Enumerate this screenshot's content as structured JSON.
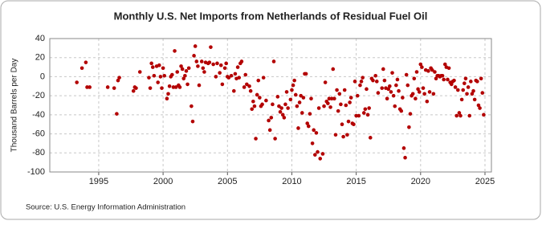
{
  "chart_data": {
    "type": "scatter",
    "title": "Monthly U.S. Net Imports from Netherlands of Residual Fuel Oil",
    "y_label": "Thousand Barrels per Day",
    "source": "Source: U.S. Energy Information Administration",
    "color": "#b30000",
    "grid": true,
    "xlim": [
      1991.2,
      2025.5
    ],
    "ylim": [
      -100,
      40
    ],
    "xticks": [
      1995,
      2000,
      2005,
      2010,
      2015,
      2020,
      2025
    ],
    "yticks": [
      -100,
      -80,
      -60,
      -40,
      -20,
      0,
      20,
      40
    ],
    "x": [
      1993.3,
      1993.7,
      1994.0,
      1994.1,
      1994.3,
      1995.7,
      1996.2,
      1996.4,
      1996.5,
      1996.6,
      1997.7,
      1997.8,
      1997.9,
      1998.2,
      1998.9,
      1999.0,
      1999.1,
      1999.2,
      1999.3,
      1999.5,
      1999.6,
      1999.7,
      1999.8,
      1999.9,
      2000.0,
      2000.1,
      2000.3,
      2000.4,
      2000.5,
      2000.6,
      2000.7,
      2000.8,
      2000.9,
      2001.0,
      2001.1,
      2001.2,
      2001.3,
      2001.4,
      2001.5,
      2001.6,
      2001.7,
      2001.8,
      2001.9,
      2002.0,
      2002.2,
      2002.3,
      2002.4,
      2002.5,
      2002.6,
      2002.7,
      2002.8,
      2003.0,
      2003.1,
      2003.2,
      2003.3,
      2003.5,
      2003.6,
      2003.7,
      2003.9,
      2004.1,
      2004.2,
      2004.4,
      2004.5,
      2004.6,
      2004.8,
      2004.9,
      2005.0,
      2005.1,
      2005.3,
      2005.5,
      2005.6,
      2005.7,
      2005.8,
      2005.9,
      2006.0,
      2006.1,
      2006.3,
      2006.4,
      2006.5,
      2006.7,
      2006.8,
      2006.9,
      2007.0,
      2007.1,
      2007.2,
      2007.3,
      2007.4,
      2007.5,
      2007.6,
      2007.7,
      2007.8,
      2008.0,
      2008.2,
      2008.3,
      2008.4,
      2008.5,
      2008.6,
      2008.7,
      2008.9,
      2009.0,
      2009.1,
      2009.2,
      2009.3,
      2009.4,
      2009.5,
      2009.6,
      2009.7,
      2009.9,
      2010.0,
      2010.1,
      2010.2,
      2010.3,
      2010.4,
      2010.5,
      2010.6,
      2010.7,
      2010.8,
      2010.9,
      2011.0,
      2011.1,
      2011.2,
      2011.3,
      2011.4,
      2011.5,
      2011.6,
      2011.7,
      2011.8,
      2011.9,
      2012.0,
      2012.1,
      2012.2,
      2012.4,
      2012.5,
      2012.6,
      2012.7,
      2012.8,
      2012.9,
      2013.0,
      2013.1,
      2013.2,
      2013.3,
      2013.4,
      2013.5,
      2013.6,
      2013.7,
      2013.8,
      2013.9,
      2014.0,
      2014.1,
      2014.2,
      2014.3,
      2014.4,
      2014.5,
      2014.6,
      2014.7,
      2014.8,
      2014.9,
      2015.0,
      2015.1,
      2015.2,
      2015.3,
      2015.4,
      2015.5,
      2015.6,
      2015.7,
      2015.8,
      2015.9,
      2016.0,
      2016.1,
      2016.2,
      2016.3,
      2016.5,
      2016.6,
      2016.7,
      2017.0,
      2017.1,
      2017.2,
      2017.3,
      2017.4,
      2017.5,
      2017.6,
      2017.7,
      2017.8,
      2017.9,
      2018.0,
      2018.1,
      2018.2,
      2018.3,
      2018.4,
      2018.5,
      2018.6,
      2018.7,
      2018.8,
      2018.9,
      2019.0,
      2019.1,
      2019.2,
      2019.3,
      2019.4,
      2019.5,
      2019.6,
      2019.7,
      2019.8,
      2019.9,
      2020.0,
      2020.1,
      2020.2,
      2020.3,
      2020.4,
      2020.5,
      2020.6,
      2020.7,
      2020.8,
      2020.9,
      2021.0,
      2021.1,
      2021.2,
      2021.3,
      2021.4,
      2021.5,
      2021.6,
      2021.7,
      2021.8,
      2021.9,
      2022.0,
      2022.1,
      2022.2,
      2022.3,
      2022.4,
      2022.5,
      2022.6,
      2022.7,
      2022.8,
      2022.9,
      2023.0,
      2023.1,
      2023.2,
      2023.3,
      2023.4,
      2023.5,
      2023.6,
      2023.7,
      2023.8,
      2023.9,
      2024.0,
      2024.1,
      2024.2,
      2024.3,
      2024.4,
      2024.5,
      2024.6,
      2024.7,
      2024.8,
      2024.9
    ],
    "values": [
      -6,
      9,
      15,
      -11,
      -11,
      -11,
      -12,
      -39,
      -4,
      -1,
      -15,
      -11,
      -12,
      5,
      -1,
      -12,
      14,
      10,
      1,
      11,
      -6,
      12,
      0,
      -12,
      9,
      1,
      -23,
      -18,
      -10,
      0,
      2,
      -11,
      27,
      -11,
      5,
      -9,
      -11,
      11,
      8,
      -2,
      1,
      6,
      -8,
      9,
      -31,
      -47,
      22,
      32,
      16,
      11,
      -9,
      16,
      9,
      5,
      15,
      14,
      15,
      31,
      13,
      0,
      14,
      4,
      12,
      -8,
      9,
      14,
      0,
      -1,
      1,
      -15,
      3,
      -2,
      10,
      -1,
      14,
      16,
      -11,
      2,
      -8,
      -10,
      -15,
      -34,
      -26,
      -31,
      -65,
      -19,
      -4,
      -22,
      -31,
      -29,
      -1,
      -25,
      -46,
      -56,
      -43,
      -29,
      16,
      -65,
      -21,
      -31,
      -37,
      -33,
      -40,
      -43,
      -29,
      -16,
      -33,
      -24,
      -14,
      -9,
      -4,
      -19,
      -31,
      -54,
      -27,
      -20,
      -38,
      -22,
      3,
      3,
      -49,
      -52,
      -39,
      -23,
      -70,
      -56,
      -82,
      -59,
      -79,
      -33,
      -86,
      -81,
      -31,
      -6,
      -26,
      -28,
      -23,
      -32,
      -23,
      8,
      -23,
      -61,
      -14,
      -36,
      -18,
      -29,
      -50,
      -63,
      -14,
      -30,
      -61,
      -47,
      -27,
      -22,
      -49,
      -50,
      -5,
      -41,
      -20,
      -41,
      -9,
      -5,
      -1,
      -38,
      -34,
      -13,
      -40,
      -33,
      -64,
      -2,
      -4,
      1,
      -5,
      -17,
      -12,
      8,
      -4,
      -12,
      -23,
      -13,
      -10,
      -16,
      4,
      -20,
      -31,
      -9,
      -3,
      -15,
      -34,
      -36,
      -22,
      -75,
      -85,
      2,
      -9,
      -53,
      -39,
      -20,
      -18,
      -2,
      -23,
      5,
      -13,
      -16,
      13,
      10,
      -12,
      -18,
      7,
      -26,
      6,
      -16,
      9,
      7,
      -18,
      5,
      -2,
      1,
      1,
      0,
      1,
      1,
      -3,
      13,
      10,
      -3,
      9,
      -6,
      -8,
      -5,
      -4,
      -11,
      -41,
      -14,
      -38,
      -41,
      -24,
      -14,
      -7,
      -2,
      -18,
      -11,
      -41,
      -5,
      -18,
      -15,
      -24,
      -4,
      -5,
      -30,
      -33,
      -2,
      -17,
      -40
    ]
  }
}
